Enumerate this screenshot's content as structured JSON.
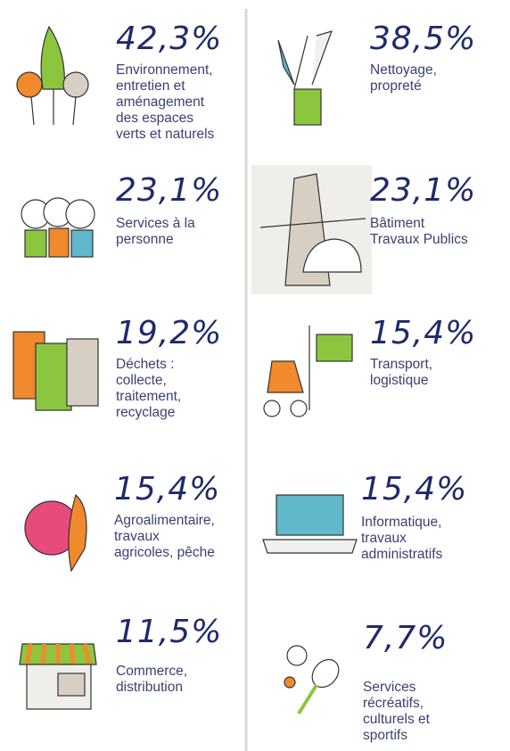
{
  "items": [
    {
      "percent": "42,3%",
      "label": [
        "Environnement,",
        "entretien et",
        "aménagement",
        "des espaces",
        "verts et naturels"
      ]
    },
    {
      "percent": "38,5%",
      "label": [
        "Nettoyage,",
        "propreté"
      ]
    },
    {
      "percent": "23,1%",
      "label": [
        "Services à la",
        "personne"
      ]
    },
    {
      "percent": "23,1%",
      "label": [
        "Bâtiment",
        "Travaux Publics"
      ]
    },
    {
      "percent": "19,2%",
      "label": [
        "Déchets :",
        "collecte,",
        "traitement,",
        "recyclage"
      ]
    },
    {
      "percent": "15,4%",
      "label": [
        "Transport,",
        "logistique"
      ]
    },
    {
      "percent": "15,4%",
      "label": [
        "Agroalimentaire,",
        "travaux",
        "agricoles, pêche"
      ]
    },
    {
      "percent": "15,4%",
      "label": [
        "Informatique,",
        "travaux",
        "administratifs"
      ]
    },
    {
      "percent": "11,5%",
      "label": [
        "Commerce,",
        "distribution"
      ]
    },
    {
      "percent": "7,7%",
      "label": [
        "Services",
        "récréatifs,",
        "culturels et",
        "sportifs"
      ]
    }
  ]
}
